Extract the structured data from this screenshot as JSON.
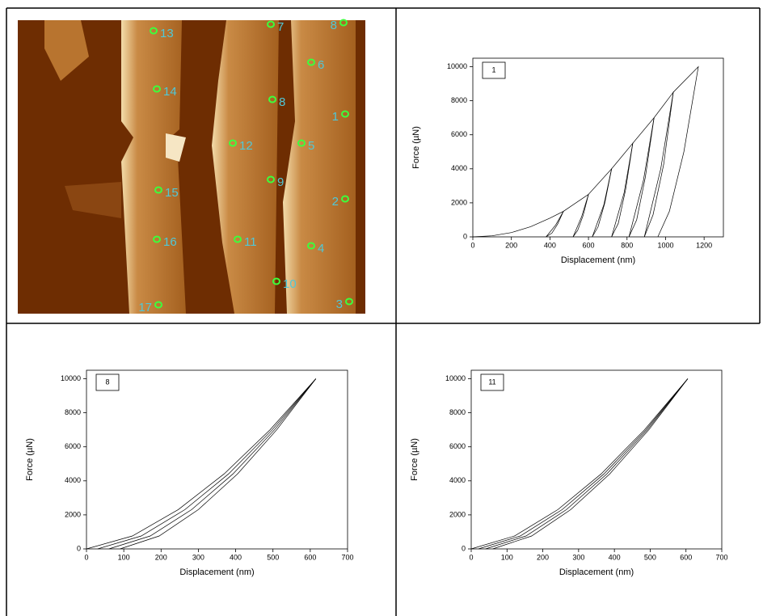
{
  "afm_image": {
    "points": [
      {
        "label": "13"
      },
      {
        "label": "14"
      },
      {
        "label": "15"
      },
      {
        "label": "16"
      },
      {
        "label": "17"
      },
      {
        "label": "7"
      },
      {
        "label": "8"
      },
      {
        "label": "6"
      },
      {
        "label": "8"
      },
      {
        "label": "1"
      },
      {
        "label": "12"
      },
      {
        "label": "5"
      },
      {
        "label": "9"
      },
      {
        "label": "2"
      },
      {
        "label": "11"
      },
      {
        "label": "4"
      },
      {
        "label": "10"
      },
      {
        "label": "3"
      }
    ]
  },
  "chart_data": [
    {
      "type": "line",
      "annotation": "1",
      "x_label": "Displacement (nm)",
      "y_label": "Force (µN)",
      "xlim": [
        0,
        1300
      ],
      "xticks": [
        0,
        200,
        400,
        600,
        800,
        1000,
        1200
      ],
      "ylim": [
        0,
        10500
      ],
      "yticks": [
        0,
        2000,
        4000,
        6000,
        8000,
        10000
      ],
      "series": [
        {
          "color": "#000000",
          "x": [
            0,
            100,
            200,
            300,
            400,
            470,
            440,
            410,
            380
          ],
          "values": [
            0,
            60,
            250,
            600,
            1100,
            1500,
            750,
            220,
            0
          ]
        },
        {
          "color": "#000000",
          "x": [
            380,
            430,
            470,
            600,
            572,
            544,
            520
          ],
          "values": [
            0,
            700,
            1500,
            2500,
            1250,
            380,
            0
          ]
        },
        {
          "color": "#000000",
          "x": [
            520,
            565,
            600,
            720,
            685,
            650,
            620
          ],
          "values": [
            0,
            1200,
            2500,
            4000,
            2000,
            600,
            0
          ]
        },
        {
          "color": "#000000",
          "x": [
            620,
            680,
            720,
            830,
            792,
            755,
            720
          ],
          "values": [
            0,
            1900,
            4000,
            5500,
            2750,
            800,
            0
          ]
        },
        {
          "color": "#000000",
          "x": [
            720,
            785,
            830,
            940,
            895,
            850,
            810
          ],
          "values": [
            0,
            2600,
            5500,
            7000,
            3500,
            1000,
            0
          ]
        },
        {
          "color": "#000000",
          "x": [
            810,
            885,
            940,
            1040,
            990,
            935,
            890
          ],
          "values": [
            0,
            3300,
            7000,
            8500,
            4250,
            1300,
            0
          ]
        },
        {
          "color": "#000000",
          "x": [
            890,
            975,
            1040,
            1170,
            1095,
            1020,
            960
          ],
          "values": [
            0,
            4000,
            8500,
            10000,
            5000,
            1500,
            0
          ]
        }
      ]
    },
    {
      "type": "line",
      "annotation": "8",
      "x_label": "Displacement (nm)",
      "y_label": "Force (µN)",
      "xlim": [
        0,
        700
      ],
      "xticks": [
        0,
        100,
        200,
        300,
        400,
        500,
        600,
        700
      ],
      "ylim": [
        0,
        10500
      ],
      "yticks": [
        0,
        2000,
        4000,
        6000,
        8000,
        10000
      ],
      "series": [
        {
          "color": "#000000",
          "x": [
            0,
            123,
            246,
            369,
            492,
            615
          ],
          "values": [
            0,
            760,
            2310,
            4410,
            7000,
            10000
          ]
        },
        {
          "color": "#000000",
          "x": [
            30,
            147,
            264,
            381,
            498,
            615
          ],
          "values": [
            0,
            760,
            2310,
            4410,
            7000,
            10000
          ]
        },
        {
          "color": "#000000",
          "x": [
            60,
            171,
            282,
            393,
            504,
            615
          ],
          "values": [
            0,
            760,
            2310,
            4410,
            7000,
            10000
          ]
        },
        {
          "color": "#000000",
          "x": [
            90,
            195,
            300,
            405,
            510,
            615
          ],
          "values": [
            0,
            760,
            2310,
            4410,
            7000,
            10000
          ]
        }
      ]
    },
    {
      "type": "line",
      "annotation": "11",
      "x_label": "Displacement (nm)",
      "y_label": "Force (µN)",
      "xlim": [
        0,
        700
      ],
      "xticks": [
        0,
        100,
        200,
        300,
        400,
        500,
        600,
        700
      ],
      "ylim": [
        0,
        10500
      ],
      "yticks": [
        0,
        2000,
        4000,
        6000,
        8000,
        10000
      ],
      "series": [
        {
          "color": "#000000",
          "x": [
            0,
            121,
            242,
            363,
            484,
            605
          ],
          "values": [
            0,
            760,
            2310,
            4410,
            7000,
            10000
          ]
        },
        {
          "color": "#000000",
          "x": [
            20,
            137,
            254,
            371,
            488,
            605
          ],
          "values": [
            0,
            760,
            2310,
            4410,
            7000,
            10000
          ]
        },
        {
          "color": "#000000",
          "x": [
            40,
            153,
            266,
            379,
            492,
            605
          ],
          "values": [
            0,
            760,
            2310,
            4410,
            7000,
            10000
          ]
        },
        {
          "color": "#000000",
          "x": [
            60,
            169,
            278,
            387,
            496,
            605
          ],
          "values": [
            0,
            760,
            2310,
            4410,
            7000,
            10000
          ]
        }
      ]
    }
  ]
}
